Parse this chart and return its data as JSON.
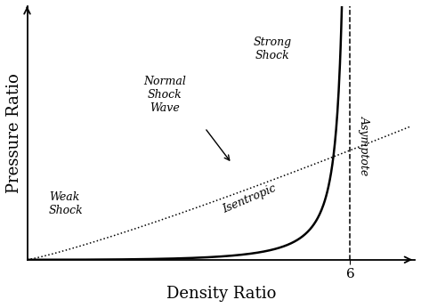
{
  "title": "",
  "xlabel": "Density Ratio",
  "ylabel": "Pressure Ratio",
  "xlabel_fontsize": 13,
  "ylabel_fontsize": 13,
  "background_color": "#ffffff",
  "xlim": [
    0,
    7.2
  ],
  "ylim": [
    0,
    10
  ],
  "asymptote_x": 6,
  "asymptote_label": "Asymptote",
  "weak_shock_label": "Weak\nShock",
  "strong_shock_label": "Strong\nShock",
  "normal_shock_label": "Normal\nShock\nWave",
  "isentropic_label": "Isentropic",
  "tick_label_6": "6"
}
